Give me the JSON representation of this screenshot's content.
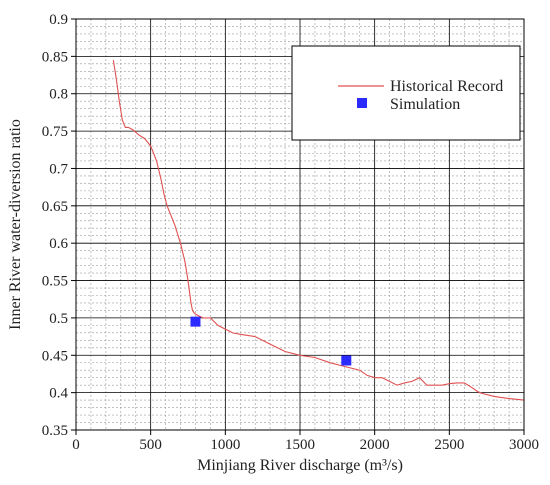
{
  "chart_data": {
    "type": "line",
    "title": "",
    "xlabel": "Minjiang River discharge (m³/s)",
    "ylabel": "Inner River water-diversion ratio",
    "xlim": [
      0,
      3000
    ],
    "ylim": [
      0.35,
      0.9
    ],
    "xticks": [
      0,
      500,
      1000,
      1500,
      2000,
      2500,
      3000
    ],
    "yticks": [
      0.35,
      0.4,
      0.45,
      0.5,
      0.55,
      0.6,
      0.65,
      0.7,
      0.75,
      0.8,
      0.85,
      0.9
    ],
    "xtick_labels": [
      "0",
      "500",
      "1000",
      "1500",
      "2000",
      "2500",
      "3000"
    ],
    "ytick_labels": [
      "0.35",
      "0.4",
      "0.45",
      "0.5",
      "0.55",
      "0.6",
      "0.65",
      "0.7",
      "0.75",
      "0.8",
      "0.85",
      "0.9"
    ],
    "grid": true,
    "legend_position": "top-right",
    "series": [
      {
        "name": "Historical Record",
        "kind": "line",
        "color": "#e05050",
        "x": [
          250,
          270,
          290,
          310,
          330,
          350,
          380,
          420,
          460,
          500,
          540,
          570,
          590,
          610,
          630,
          660,
          700,
          730,
          750,
          770,
          780,
          790,
          800,
          820,
          850,
          900,
          950,
          1000,
          1050,
          1100,
          1200,
          1300,
          1400,
          1500,
          1600,
          1700,
          1800,
          1900,
          1950,
          2000,
          2050,
          2100,
          2150,
          2200,
          2250,
          2300,
          2350,
          2400,
          2450,
          2500,
          2550,
          2600,
          2650,
          2700,
          2800,
          2900,
          3000
        ],
        "y": [
          0.845,
          0.82,
          0.79,
          0.765,
          0.755,
          0.755,
          0.752,
          0.745,
          0.74,
          0.73,
          0.71,
          0.685,
          0.665,
          0.65,
          0.64,
          0.625,
          0.6,
          0.575,
          0.55,
          0.52,
          0.51,
          0.507,
          0.505,
          0.503,
          0.5,
          0.5,
          0.49,
          0.485,
          0.48,
          0.478,
          0.475,
          0.465,
          0.455,
          0.45,
          0.447,
          0.44,
          0.435,
          0.43,
          0.423,
          0.42,
          0.42,
          0.415,
          0.41,
          0.413,
          0.415,
          0.42,
          0.41,
          0.41,
          0.41,
          0.412,
          0.413,
          0.413,
          0.407,
          0.4,
          0.395,
          0.392,
          0.39
        ]
      },
      {
        "name": "Simulation",
        "kind": "scatter",
        "color": "#2b2bff",
        "x": [
          800,
          1810
        ],
        "y": [
          0.495,
          0.443
        ]
      }
    ]
  }
}
